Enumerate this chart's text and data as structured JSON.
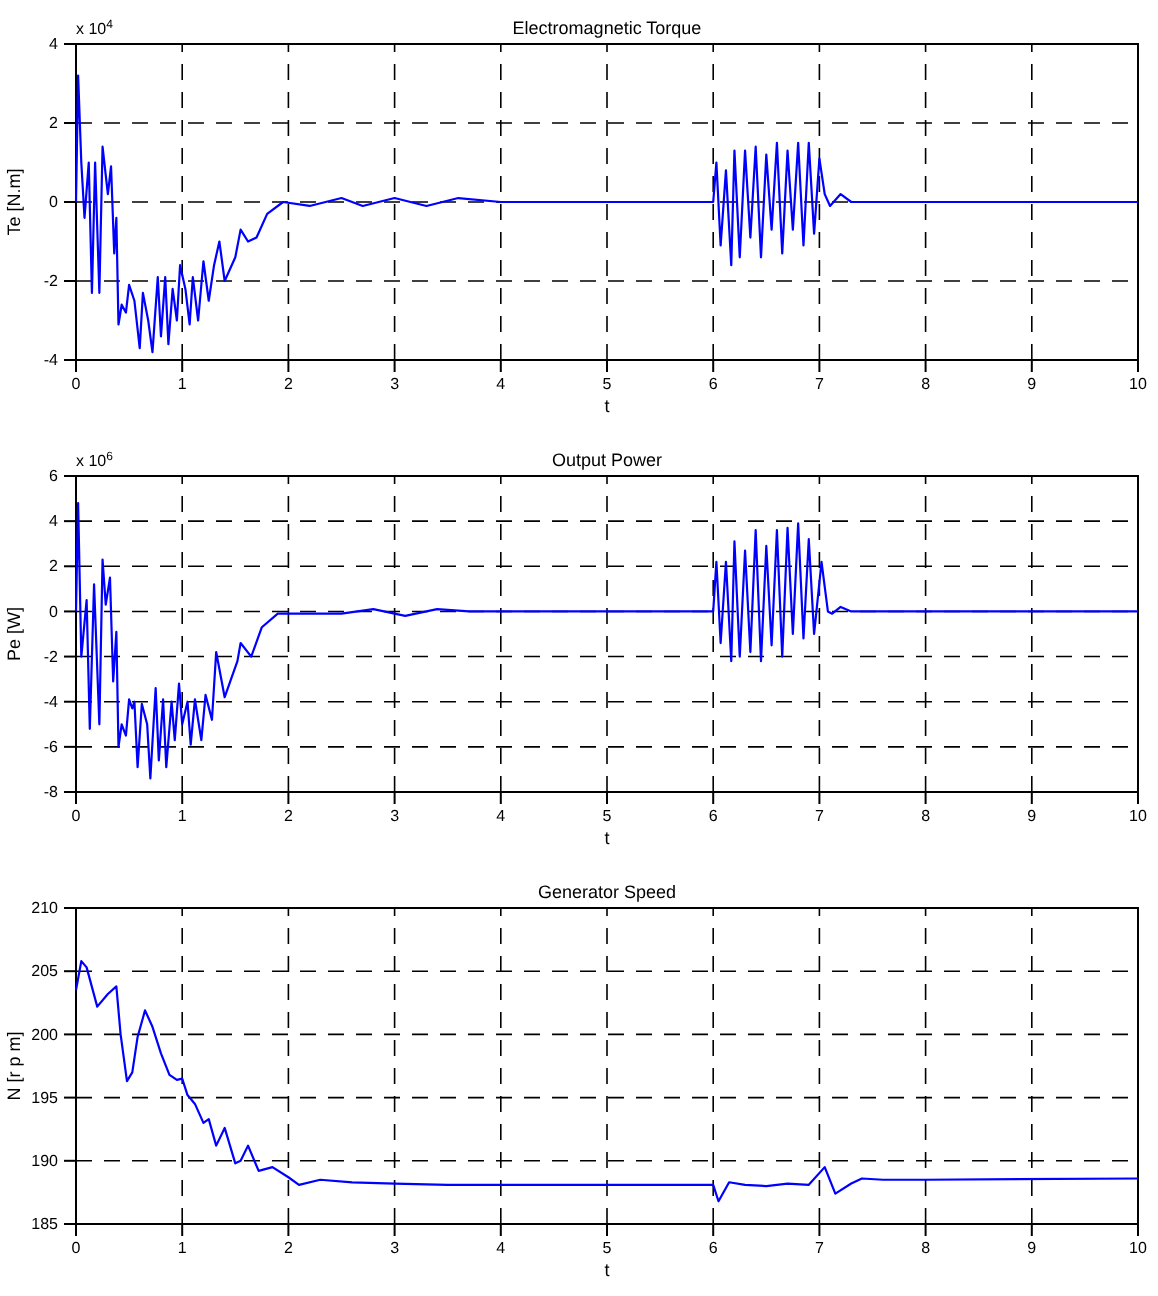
{
  "chart_data": [
    {
      "type": "line",
      "title": "Electromagnetic Torque",
      "xlabel": "t",
      "ylabel": "Te  [N.m]",
      "annotations": [
        "x 10$^{4}$"
      ],
      "xlim": [
        0,
        10
      ],
      "xticks": [
        0,
        1,
        2,
        3,
        4,
        5,
        6,
        7,
        8,
        9,
        10
      ],
      "ylim": [
        -4,
        4
      ],
      "yticks": [
        -4,
        -2,
        0,
        2,
        4
      ],
      "grid": true,
      "series": [
        {
          "color": "#0000ff",
          "x": [
            0,
            0.02,
            0.05,
            0.08,
            0.12,
            0.15,
            0.18,
            0.22,
            0.25,
            0.3,
            0.33,
            0.36,
            0.38,
            0.4,
            0.43,
            0.47,
            0.5,
            0.55,
            0.6,
            0.63,
            0.68,
            0.72,
            0.77,
            0.8,
            0.84,
            0.87,
            0.91,
            0.95,
            0.98,
            1.03,
            1.07,
            1.1,
            1.15,
            1.2,
            1.25,
            1.3,
            1.35,
            1.4,
            1.5,
            1.55,
            1.62,
            1.7,
            1.8,
            1.95,
            2.2,
            2.5,
            2.7,
            3,
            3.3,
            3.6,
            4,
            6,
            6.03,
            6.07,
            6.12,
            6.17,
            6.2,
            6.25,
            6.3,
            6.35,
            6.4,
            6.45,
            6.5,
            6.55,
            6.6,
            6.65,
            6.7,
            6.75,
            6.8,
            6.85,
            6.9,
            6.95,
            7,
            7.05,
            7.1,
            7.2,
            7.3,
            10
          ],
          "values": [
            0,
            3.2,
            1.0,
            -0.4,
            1.0,
            -2.3,
            1.0,
            -2.3,
            1.4,
            0.2,
            0.9,
            -1.3,
            -0.4,
            -3.1,
            -2.6,
            -2.8,
            -2.1,
            -2.5,
            -3.7,
            -2.3,
            -3.0,
            -3.8,
            -1.9,
            -3.4,
            -1.9,
            -3.6,
            -2.2,
            -3.0,
            -1.6,
            -2.2,
            -3.1,
            -1.9,
            -3.0,
            -1.5,
            -2.5,
            -1.6,
            -1.0,
            -2.0,
            -1.4,
            -0.7,
            -1.0,
            -0.9,
            -0.3,
            0,
            -0.1,
            0.1,
            -0.1,
            0.1,
            -0.1,
            0.1,
            0,
            0,
            1.0,
            -1.1,
            0.8,
            -1.6,
            1.3,
            -1.4,
            1.3,
            -0.9,
            1.4,
            -1.4,
            1.2,
            -0.7,
            1.5,
            -1.3,
            1.3,
            -0.7,
            1.5,
            -1.1,
            1.5,
            -0.8,
            1.1,
            0.2,
            -0.1,
            0.2,
            0,
            0
          ]
        }
      ]
    },
    {
      "type": "line",
      "title": "Output Power",
      "xlabel": "t",
      "ylabel": "Pe  [W]",
      "annotations": [
        "x 10$^{6}$"
      ],
      "xlim": [
        0,
        10
      ],
      "xticks": [
        0,
        1,
        2,
        3,
        4,
        5,
        6,
        7,
        8,
        9,
        10
      ],
      "ylim": [
        -8,
        6
      ],
      "yticks": [
        -8,
        -6,
        -4,
        -2,
        0,
        2,
        4,
        6
      ],
      "grid": true,
      "series": [
        {
          "color": "#0000ff",
          "x": [
            0,
            0.02,
            0.05,
            0.1,
            0.13,
            0.17,
            0.22,
            0.25,
            0.28,
            0.32,
            0.35,
            0.38,
            0.4,
            0.43,
            0.47,
            0.5,
            0.53,
            0.55,
            0.58,
            0.62,
            0.67,
            0.7,
            0.75,
            0.78,
            0.82,
            0.85,
            0.9,
            0.93,
            0.97,
            1,
            1.05,
            1.08,
            1.12,
            1.18,
            1.22,
            1.28,
            1.32,
            1.4,
            1.52,
            1.55,
            1.65,
            1.75,
            1.9,
            2.2,
            2.5,
            2.8,
            3.1,
            3.4,
            3.7,
            6,
            6.03,
            6.07,
            6.12,
            6.17,
            6.2,
            6.25,
            6.3,
            6.35,
            6.4,
            6.45,
            6.5,
            6.55,
            6.6,
            6.65,
            6.7,
            6.75,
            6.8,
            6.85,
            6.9,
            6.95,
            7.02,
            7.08,
            7.12,
            7.2,
            7.3,
            10
          ],
          "values": [
            0,
            4.8,
            -2.0,
            0.5,
            -5.2,
            1.2,
            -5.0,
            2.3,
            0.3,
            1.5,
            -3.1,
            -0.9,
            -6.0,
            -5.0,
            -5.5,
            -3.9,
            -4.3,
            -4.0,
            -6.9,
            -4.1,
            -5.0,
            -7.4,
            -3.4,
            -6.6,
            -3.9,
            -6.9,
            -4.0,
            -5.7,
            -3.2,
            -5.0,
            -4.0,
            -5.9,
            -3.9,
            -5.7,
            -3.7,
            -4.8,
            -1.8,
            -3.8,
            -2.2,
            -1.4,
            -2.0,
            -0.7,
            -0.1,
            -0.1,
            -0.1,
            0.1,
            -0.2,
            0.1,
            0,
            0,
            2.2,
            -1.4,
            2.2,
            -2.2,
            3.1,
            -2.0,
            2.7,
            -1.8,
            3.6,
            -2.2,
            2.9,
            -1.5,
            3.6,
            -2.0,
            3.7,
            -1.0,
            3.9,
            -1.2,
            3.2,
            -1.0,
            2.2,
            0,
            -0.1,
            0.2,
            0,
            0
          ]
        }
      ]
    },
    {
      "type": "line",
      "title": "Generator Speed",
      "xlabel": "t",
      "ylabel": "N  [r p m]",
      "xlim": [
        0,
        10
      ],
      "xticks": [
        0,
        1,
        2,
        3,
        4,
        5,
        6,
        7,
        8,
        9,
        10
      ],
      "ylim": [
        185,
        210
      ],
      "yticks": [
        185,
        190,
        195,
        200,
        205,
        210
      ],
      "grid": true,
      "series": [
        {
          "color": "#0000ff",
          "x": [
            0,
            0.05,
            0.1,
            0.2,
            0.3,
            0.38,
            0.42,
            0.48,
            0.53,
            0.58,
            0.65,
            0.72,
            0.8,
            0.88,
            0.95,
            1,
            1.05,
            1.12,
            1.2,
            1.25,
            1.32,
            1.4,
            1.5,
            1.55,
            1.62,
            1.72,
            1.85,
            2,
            2.1,
            2.3,
            2.6,
            3,
            3.5,
            4,
            6,
            6.05,
            6.15,
            6.3,
            6.5,
            6.7,
            6.9,
            7.05,
            7.15,
            7.3,
            7.4,
            7.6,
            8,
            10
          ],
          "values": [
            203.5,
            205.8,
            205.3,
            202.2,
            203.2,
            203.8,
            200,
            196.3,
            197,
            199.8,
            201.9,
            200.6,
            198.5,
            196.8,
            196.4,
            196.5,
            195.2,
            194.5,
            193,
            193.3,
            191.2,
            192.6,
            189.8,
            190,
            191.2,
            189.2,
            189.5,
            188.7,
            188.1,
            188.5,
            188.3,
            188.2,
            188.1,
            188.1,
            188.1,
            186.8,
            188.3,
            188.1,
            188,
            188.2,
            188.1,
            189.5,
            187.4,
            188.2,
            188.6,
            188.5,
            188.5,
            188.6
          ]
        }
      ]
    }
  ]
}
